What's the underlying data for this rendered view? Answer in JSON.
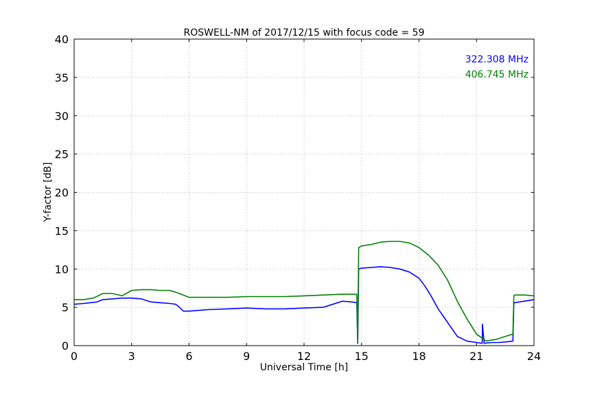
{
  "chart_data": {
    "type": "line",
    "title": "ROSWELL-NM of 2017/12/15 with focus code = 59",
    "xlabel": "Universal Time [h]",
    "ylabel": "Y-factor [dB]",
    "xlim": [
      0,
      24
    ],
    "ylim": [
      0,
      40
    ],
    "xticks": [
      0,
      3,
      6,
      9,
      12,
      15,
      18,
      21,
      24
    ],
    "yticks": [
      0,
      5,
      10,
      15,
      20,
      25,
      30,
      35,
      40
    ],
    "grid": true,
    "legend_position": "top-right",
    "series": [
      {
        "name": "322.308 MHz",
        "color": "#0000ff",
        "x": [
          0,
          0.5,
          1.2,
          1.5,
          2.0,
          2.5,
          3.0,
          3.5,
          4.0,
          4.5,
          5.0,
          5.3,
          5.5,
          5.7,
          6.0,
          6.5,
          7.0,
          8.0,
          9.0,
          10.0,
          11.0,
          12.0,
          13.0,
          13.5,
          14.0,
          14.5,
          14.75,
          14.8,
          14.85,
          15.0,
          15.5,
          16.0,
          16.5,
          17.0,
          17.5,
          18.0,
          18.3,
          18.6,
          19.0,
          19.5,
          20.0,
          20.5,
          21.0,
          21.3,
          21.31,
          21.4,
          21.8,
          22.2,
          22.6,
          22.9,
          22.95,
          23.0,
          23.5,
          24.0
        ],
        "values": [
          5.4,
          5.5,
          5.7,
          6.0,
          6.1,
          6.2,
          6.2,
          6.1,
          5.7,
          5.6,
          5.5,
          5.4,
          5.0,
          4.5,
          4.5,
          4.6,
          4.7,
          4.8,
          4.9,
          4.8,
          4.8,
          4.9,
          5.0,
          5.4,
          5.8,
          5.7,
          5.6,
          0.3,
          10.0,
          10.1,
          10.2,
          10.3,
          10.2,
          10.0,
          9.6,
          8.8,
          7.8,
          6.6,
          4.8,
          3.0,
          1.2,
          0.6,
          0.4,
          0.3,
          2.8,
          0.3,
          0.4,
          0.4,
          0.5,
          0.6,
          5.5,
          5.6,
          5.8,
          6.0
        ]
      },
      {
        "name": "406.745 MHz",
        "color": "#008000",
        "x": [
          0,
          0.5,
          1.0,
          1.5,
          2.0,
          2.5,
          3.0,
          3.5,
          4.0,
          4.5,
          5.0,
          5.5,
          6.0,
          7.0,
          8.0,
          9.0,
          10.0,
          11.0,
          12.0,
          13.0,
          14.0,
          14.75,
          14.8,
          14.85,
          15.0,
          15.5,
          16.0,
          16.5,
          17.0,
          17.5,
          18.0,
          18.5,
          19.0,
          19.5,
          20.0,
          20.5,
          21.0,
          21.5,
          22.0,
          22.5,
          22.9,
          22.95,
          23.0,
          23.5,
          24.0
        ],
        "values": [
          6.0,
          6.0,
          6.2,
          6.8,
          6.8,
          6.5,
          7.2,
          7.3,
          7.3,
          7.2,
          7.2,
          6.8,
          6.3,
          6.3,
          6.3,
          6.4,
          6.4,
          6.4,
          6.5,
          6.6,
          6.7,
          6.7,
          0.5,
          12.8,
          13.0,
          13.2,
          13.5,
          13.6,
          13.6,
          13.4,
          12.8,
          11.8,
          10.5,
          8.5,
          5.8,
          3.5,
          1.5,
          0.6,
          0.8,
          1.2,
          1.5,
          6.5,
          6.6,
          6.6,
          6.5
        ]
      }
    ]
  }
}
